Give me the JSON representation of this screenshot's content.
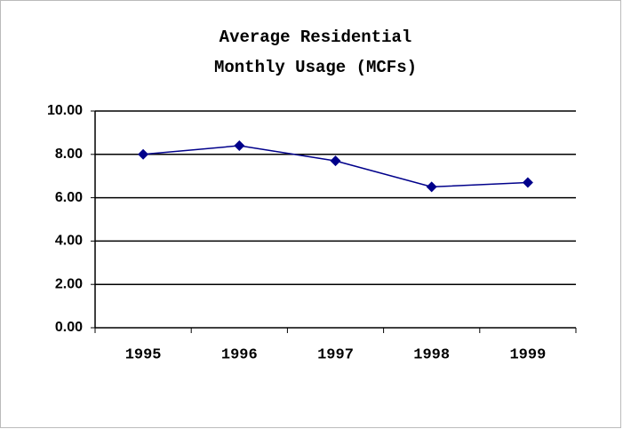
{
  "chart_data": {
    "type": "line",
    "title": [
      "Average Residential",
      "Monthly Usage (MCFs)"
    ],
    "categories": [
      "1995",
      "1996",
      "1997",
      "1998",
      "1999"
    ],
    "series": [
      {
        "name": "Usage",
        "color": "#00008b",
        "values": [
          8.0,
          8.4,
          7.7,
          6.5,
          6.7
        ]
      }
    ],
    "ylim": [
      0,
      10
    ],
    "yticks": [
      {
        "value": 0,
        "label": "0.00"
      },
      {
        "value": 2,
        "label": "2.00"
      },
      {
        "value": 4,
        "label": "4.00"
      },
      {
        "value": 6,
        "label": "6.00"
      },
      {
        "value": 8,
        "label": "8.00"
      },
      {
        "value": 10,
        "label": "10.00"
      }
    ],
    "grid": true
  }
}
